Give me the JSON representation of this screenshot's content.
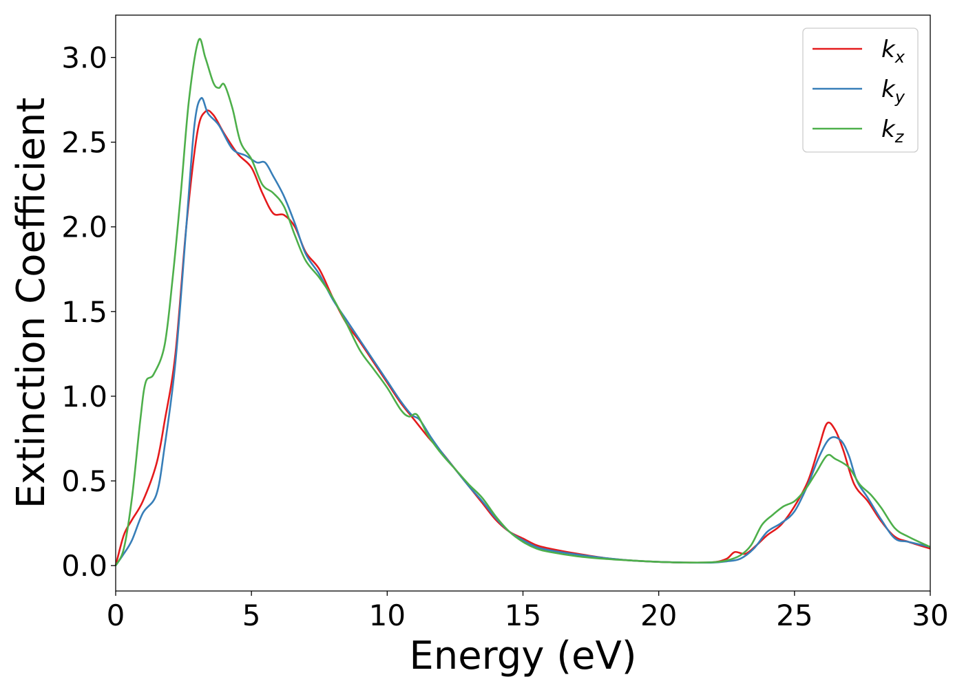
{
  "chart_data": {
    "type": "line",
    "xlabel": "Energy (eV)",
    "ylabel": "Extinction Coefficient",
    "xlim": [
      0,
      30
    ],
    "ylim": [
      -0.15,
      3.25
    ],
    "xticks": [
      0,
      5,
      10,
      15,
      20,
      25,
      30
    ],
    "xtick_labels": [
      "0",
      "5",
      "10",
      "15",
      "20",
      "25",
      "30"
    ],
    "yticks": [
      0.0,
      0.5,
      1.0,
      1.5,
      2.0,
      2.5,
      3.0
    ],
    "ytick_labels": [
      "0.0",
      "0.5",
      "1.0",
      "1.5",
      "2.0",
      "2.5",
      "3.0"
    ],
    "grid": false,
    "legend_position": "top-right",
    "series": [
      {
        "name": "k",
        "subscript": "x",
        "color": "#e41a1c",
        "points": [
          [
            0,
            0
          ],
          [
            0.3,
            0.18
          ],
          [
            0.6,
            0.27
          ],
          [
            1.0,
            0.38
          ],
          [
            1.5,
            0.6
          ],
          [
            1.8,
            0.85
          ],
          [
            2.2,
            1.25
          ],
          [
            2.6,
            2.0
          ],
          [
            3.0,
            2.55
          ],
          [
            3.3,
            2.68
          ],
          [
            3.6,
            2.66
          ],
          [
            4.0,
            2.55
          ],
          [
            4.5,
            2.43
          ],
          [
            5.0,
            2.35
          ],
          [
            5.4,
            2.2
          ],
          [
            5.8,
            2.08
          ],
          [
            6.2,
            2.07
          ],
          [
            6.6,
            2.0
          ],
          [
            7.0,
            1.85
          ],
          [
            7.5,
            1.75
          ],
          [
            8.0,
            1.58
          ],
          [
            8.5,
            1.43
          ],
          [
            9.0,
            1.32
          ],
          [
            9.5,
            1.2
          ],
          [
            10.0,
            1.08
          ],
          [
            10.5,
            0.96
          ],
          [
            11.0,
            0.86
          ],
          [
            11.5,
            0.76
          ],
          [
            12.0,
            0.67
          ],
          [
            12.5,
            0.57
          ],
          [
            13.0,
            0.47
          ],
          [
            13.5,
            0.37
          ],
          [
            14.0,
            0.27
          ],
          [
            14.5,
            0.2
          ],
          [
            15.0,
            0.16
          ],
          [
            15.5,
            0.12
          ],
          [
            16.0,
            0.1
          ],
          [
            17.0,
            0.07
          ],
          [
            18.0,
            0.045
          ],
          [
            19.0,
            0.03
          ],
          [
            20.0,
            0.022
          ],
          [
            21.0,
            0.018
          ],
          [
            22.0,
            0.02
          ],
          [
            22.5,
            0.04
          ],
          [
            22.8,
            0.08
          ],
          [
            23.2,
            0.07
          ],
          [
            23.6,
            0.12
          ],
          [
            24.0,
            0.18
          ],
          [
            24.5,
            0.24
          ],
          [
            25.0,
            0.35
          ],
          [
            25.5,
            0.5
          ],
          [
            25.9,
            0.7
          ],
          [
            26.2,
            0.84
          ],
          [
            26.5,
            0.8
          ],
          [
            26.8,
            0.68
          ],
          [
            27.2,
            0.48
          ],
          [
            27.7,
            0.38
          ],
          [
            28.2,
            0.26
          ],
          [
            28.7,
            0.17
          ],
          [
            29.2,
            0.14
          ],
          [
            30.0,
            0.1
          ]
        ]
      },
      {
        "name": "k",
        "subscript": "y",
        "color": "#377eb8",
        "points": [
          [
            0,
            0
          ],
          [
            0.3,
            0.07
          ],
          [
            0.6,
            0.15
          ],
          [
            1.0,
            0.31
          ],
          [
            1.5,
            0.42
          ],
          [
            1.8,
            0.7
          ],
          [
            2.2,
            1.2
          ],
          [
            2.6,
            2.0
          ],
          [
            2.9,
            2.6
          ],
          [
            3.15,
            2.76
          ],
          [
            3.4,
            2.67
          ],
          [
            3.8,
            2.6
          ],
          [
            4.3,
            2.46
          ],
          [
            4.8,
            2.42
          ],
          [
            5.2,
            2.38
          ],
          [
            5.5,
            2.38
          ],
          [
            5.8,
            2.3
          ],
          [
            6.2,
            2.18
          ],
          [
            6.6,
            2.02
          ],
          [
            7.0,
            1.84
          ],
          [
            7.5,
            1.72
          ],
          [
            8.0,
            1.57
          ],
          [
            8.5,
            1.45
          ],
          [
            9.0,
            1.33
          ],
          [
            9.5,
            1.21
          ],
          [
            10.0,
            1.09
          ],
          [
            10.5,
            0.97
          ],
          [
            10.9,
            0.89
          ],
          [
            11.2,
            0.86
          ],
          [
            11.6,
            0.76
          ],
          [
            12.0,
            0.67
          ],
          [
            12.5,
            0.57
          ],
          [
            13.0,
            0.47
          ],
          [
            13.5,
            0.38
          ],
          [
            14.0,
            0.28
          ],
          [
            14.5,
            0.2
          ],
          [
            15.0,
            0.15
          ],
          [
            15.5,
            0.11
          ],
          [
            16.0,
            0.09
          ],
          [
            17.0,
            0.065
          ],
          [
            18.0,
            0.045
          ],
          [
            19.0,
            0.03
          ],
          [
            20.0,
            0.022
          ],
          [
            21.0,
            0.018
          ],
          [
            22.0,
            0.018
          ],
          [
            22.5,
            0.025
          ],
          [
            23.0,
            0.04
          ],
          [
            23.5,
            0.1
          ],
          [
            24.0,
            0.2
          ],
          [
            24.5,
            0.25
          ],
          [
            25.0,
            0.32
          ],
          [
            25.5,
            0.48
          ],
          [
            25.9,
            0.64
          ],
          [
            26.3,
            0.75
          ],
          [
            26.7,
            0.74
          ],
          [
            27.0,
            0.65
          ],
          [
            27.3,
            0.5
          ],
          [
            27.7,
            0.4
          ],
          [
            28.2,
            0.27
          ],
          [
            28.7,
            0.16
          ],
          [
            29.2,
            0.14
          ],
          [
            30.0,
            0.11
          ]
        ]
      },
      {
        "name": "k",
        "subscript": "z",
        "color": "#4daf4a",
        "points": [
          [
            0,
            0
          ],
          [
            0.3,
            0.1
          ],
          [
            0.6,
            0.4
          ],
          [
            0.9,
            0.85
          ],
          [
            1.1,
            1.08
          ],
          [
            1.4,
            1.13
          ],
          [
            1.8,
            1.3
          ],
          [
            2.1,
            1.7
          ],
          [
            2.4,
            2.2
          ],
          [
            2.7,
            2.75
          ],
          [
            3.05,
            3.1
          ],
          [
            3.3,
            3.0
          ],
          [
            3.6,
            2.85
          ],
          [
            3.8,
            2.82
          ],
          [
            4.0,
            2.84
          ],
          [
            4.3,
            2.7
          ],
          [
            4.6,
            2.5
          ],
          [
            5.0,
            2.4
          ],
          [
            5.4,
            2.25
          ],
          [
            5.8,
            2.2
          ],
          [
            6.2,
            2.12
          ],
          [
            6.6,
            1.95
          ],
          [
            7.0,
            1.8
          ],
          [
            7.5,
            1.7
          ],
          [
            8.0,
            1.58
          ],
          [
            8.5,
            1.43
          ],
          [
            9.0,
            1.27
          ],
          [
            9.5,
            1.16
          ],
          [
            10.0,
            1.05
          ],
          [
            10.5,
            0.92
          ],
          [
            10.8,
            0.88
          ],
          [
            11.1,
            0.89
          ],
          [
            11.5,
            0.77
          ],
          [
            12.0,
            0.66
          ],
          [
            12.5,
            0.57
          ],
          [
            13.0,
            0.48
          ],
          [
            13.5,
            0.4
          ],
          [
            14.0,
            0.29
          ],
          [
            14.5,
            0.2
          ],
          [
            15.0,
            0.14
          ],
          [
            15.5,
            0.1
          ],
          [
            16.0,
            0.08
          ],
          [
            17.0,
            0.055
          ],
          [
            18.0,
            0.04
          ],
          [
            19.0,
            0.03
          ],
          [
            20.0,
            0.022
          ],
          [
            21.0,
            0.018
          ],
          [
            22.0,
            0.02
          ],
          [
            22.5,
            0.03
          ],
          [
            23.0,
            0.06
          ],
          [
            23.4,
            0.12
          ],
          [
            23.8,
            0.24
          ],
          [
            24.2,
            0.3
          ],
          [
            24.6,
            0.35
          ],
          [
            25.0,
            0.38
          ],
          [
            25.4,
            0.45
          ],
          [
            25.8,
            0.55
          ],
          [
            26.2,
            0.65
          ],
          [
            26.5,
            0.63
          ],
          [
            27.0,
            0.58
          ],
          [
            27.4,
            0.48
          ],
          [
            27.8,
            0.42
          ],
          [
            28.2,
            0.34
          ],
          [
            28.7,
            0.22
          ],
          [
            29.2,
            0.17
          ],
          [
            30.0,
            0.11
          ]
        ]
      }
    ]
  }
}
